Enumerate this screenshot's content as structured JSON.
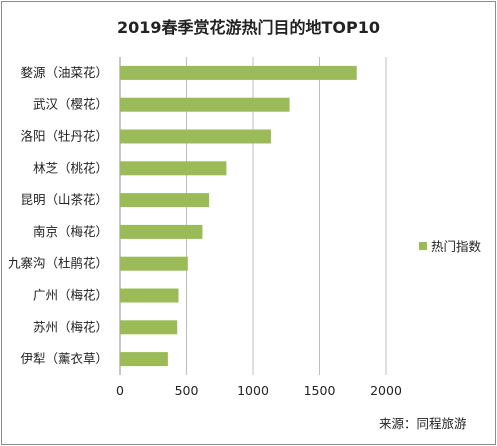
{
  "chart_data": {
    "type": "bar",
    "orientation": "horizontal",
    "title": "2019春季赏花游热门目的地TOP10",
    "categories": [
      "婺源（油菜花）",
      "武汉（樱花）",
      "洛阳（牡丹花）",
      "林芝（桃花）",
      "昆明（山茶花）",
      "南京（梅花）",
      "九寨沟（杜鹃花）",
      "广州（梅花）",
      "苏州（梅花）",
      "伊犁（薰衣草）"
    ],
    "series": [
      {
        "name": "热门指数",
        "values": [
          1780,
          1275,
          1135,
          800,
          670,
          620,
          510,
          440,
          430,
          360
        ]
      }
    ],
    "xlim": [
      0,
      2000
    ],
    "xticks": [
      "0",
      "500",
      "1000",
      "1500",
      "2000"
    ],
    "grid": true,
    "legend": "right",
    "bar_color": "#9bbb59",
    "gridline_color": "#bfbfbf"
  },
  "source": "来源：同程旅游"
}
